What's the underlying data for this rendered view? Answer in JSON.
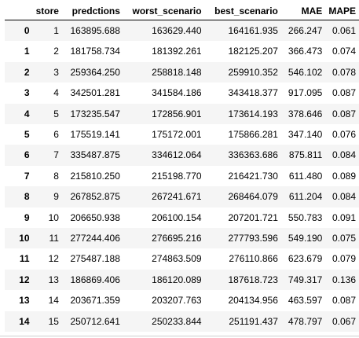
{
  "table": {
    "columns": [
      "",
      "store",
      "predctions",
      "worst_scenario",
      "best_scenario",
      "MAE",
      "MAPE"
    ],
    "rows": [
      {
        "index": "0",
        "store": "1",
        "predctions": "163895.688",
        "worst_scenario": "163629.440",
        "best_scenario": "164161.935",
        "MAE": "266.247",
        "MAPE": "0.061"
      },
      {
        "index": "1",
        "store": "2",
        "predctions": "181758.734",
        "worst_scenario": "181392.261",
        "best_scenario": "182125.207",
        "MAE": "366.473",
        "MAPE": "0.074"
      },
      {
        "index": "2",
        "store": "3",
        "predctions": "259364.250",
        "worst_scenario": "258818.148",
        "best_scenario": "259910.352",
        "MAE": "546.102",
        "MAPE": "0.078"
      },
      {
        "index": "3",
        "store": "4",
        "predctions": "342501.281",
        "worst_scenario": "341584.186",
        "best_scenario": "343418.377",
        "MAE": "917.095",
        "MAPE": "0.087"
      },
      {
        "index": "4",
        "store": "5",
        "predctions": "173235.547",
        "worst_scenario": "172856.901",
        "best_scenario": "173614.193",
        "MAE": "378.646",
        "MAPE": "0.087"
      },
      {
        "index": "5",
        "store": "6",
        "predctions": "175519.141",
        "worst_scenario": "175172.001",
        "best_scenario": "175866.281",
        "MAE": "347.140",
        "MAPE": "0.076"
      },
      {
        "index": "6",
        "store": "7",
        "predctions": "335487.875",
        "worst_scenario": "334612.064",
        "best_scenario": "336363.686",
        "MAE": "875.811",
        "MAPE": "0.084"
      },
      {
        "index": "7",
        "store": "8",
        "predctions": "215810.250",
        "worst_scenario": "215198.770",
        "best_scenario": "216421.730",
        "MAE": "611.480",
        "MAPE": "0.089"
      },
      {
        "index": "8",
        "store": "9",
        "predctions": "267852.875",
        "worst_scenario": "267241.671",
        "best_scenario": "268464.079",
        "MAE": "611.204",
        "MAPE": "0.084"
      },
      {
        "index": "9",
        "store": "10",
        "predctions": "206650.938",
        "worst_scenario": "206100.154",
        "best_scenario": "207201.721",
        "MAE": "550.783",
        "MAPE": "0.091"
      },
      {
        "index": "10",
        "store": "11",
        "predctions": "277244.406",
        "worst_scenario": "276695.216",
        "best_scenario": "277793.596",
        "MAE": "549.190",
        "MAPE": "0.075"
      },
      {
        "index": "11",
        "store": "12",
        "predctions": "275487.188",
        "worst_scenario": "274863.509",
        "best_scenario": "276110.866",
        "MAE": "623.679",
        "MAPE": "0.079"
      },
      {
        "index": "12",
        "store": "13",
        "predctions": "186869.406",
        "worst_scenario": "186120.089",
        "best_scenario": "187618.723",
        "MAE": "749.317",
        "MAPE": "0.136"
      },
      {
        "index": "13",
        "store": "14",
        "predctions": "203671.359",
        "worst_scenario": "203207.763",
        "best_scenario": "204134.956",
        "MAE": "463.597",
        "MAPE": "0.087"
      },
      {
        "index": "14",
        "store": "15",
        "predctions": "250712.641",
        "worst_scenario": "250233.844",
        "best_scenario": "251191.437",
        "MAE": "478.797",
        "MAPE": "0.067"
      }
    ]
  },
  "colors": {
    "stripe": "#f5f5f5",
    "background": "#ffffff",
    "header_rule": "#000000"
  }
}
